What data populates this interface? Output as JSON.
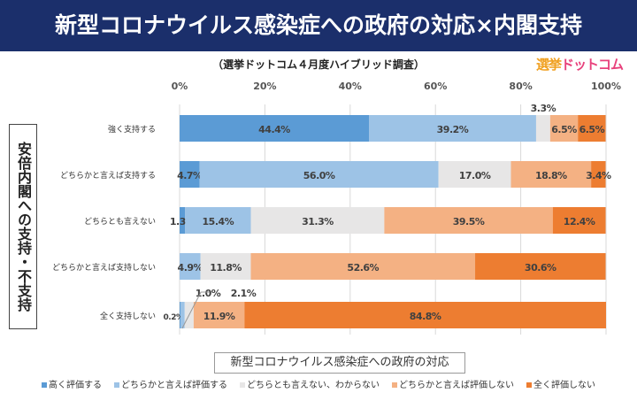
{
  "header": {
    "title": "新型コロナウイルス感染症への政府の対応×内閣支持"
  },
  "logo": {
    "text_a": "選挙",
    "text_b": "ドットコム"
  },
  "chart_data": {
    "type": "bar",
    "orientation": "horizontal",
    "stacked": "percent",
    "subtitle": "（選挙ドットコム４月度ハイブリッド調査）",
    "ylabel": "安倍内閣への支持・不支持",
    "xlabel": "新型コロナウイルス感染症への政府の対応",
    "xlim": [
      0,
      100
    ],
    "xticks": [
      "0%",
      "20%",
      "40%",
      "60%",
      "80%",
      "100%"
    ],
    "categories": [
      "強く支持する",
      "どちらかと言えば支持する",
      "どちらとも言えない",
      "どちらかと言えば支持しない",
      "全く支持しない"
    ],
    "series": [
      {
        "name": "高く評価する",
        "color": "#5b9bd5",
        "values": [
          44.4,
          4.7,
          1.3,
          0,
          0.2
        ]
      },
      {
        "name": "どちらかと言えば評価する",
        "color": "#9dc3e6",
        "values": [
          39.2,
          56.0,
          15.4,
          4.9,
          1.0
        ]
      },
      {
        "name": "どちらとも言えない、わからない",
        "color": "#e7e6e6",
        "values": [
          3.3,
          17.0,
          31.3,
          11.8,
          2.1
        ]
      },
      {
        "name": "どちらかと言えば評価しない",
        "color": "#f4b183",
        "values": [
          6.5,
          18.8,
          39.5,
          52.6,
          11.9
        ]
      },
      {
        "name": "全く評価しない",
        "color": "#ed7d31",
        "values": [
          6.5,
          3.4,
          12.4,
          30.6,
          84.8
        ]
      }
    ],
    "grid": true,
    "legend": "bottom"
  }
}
